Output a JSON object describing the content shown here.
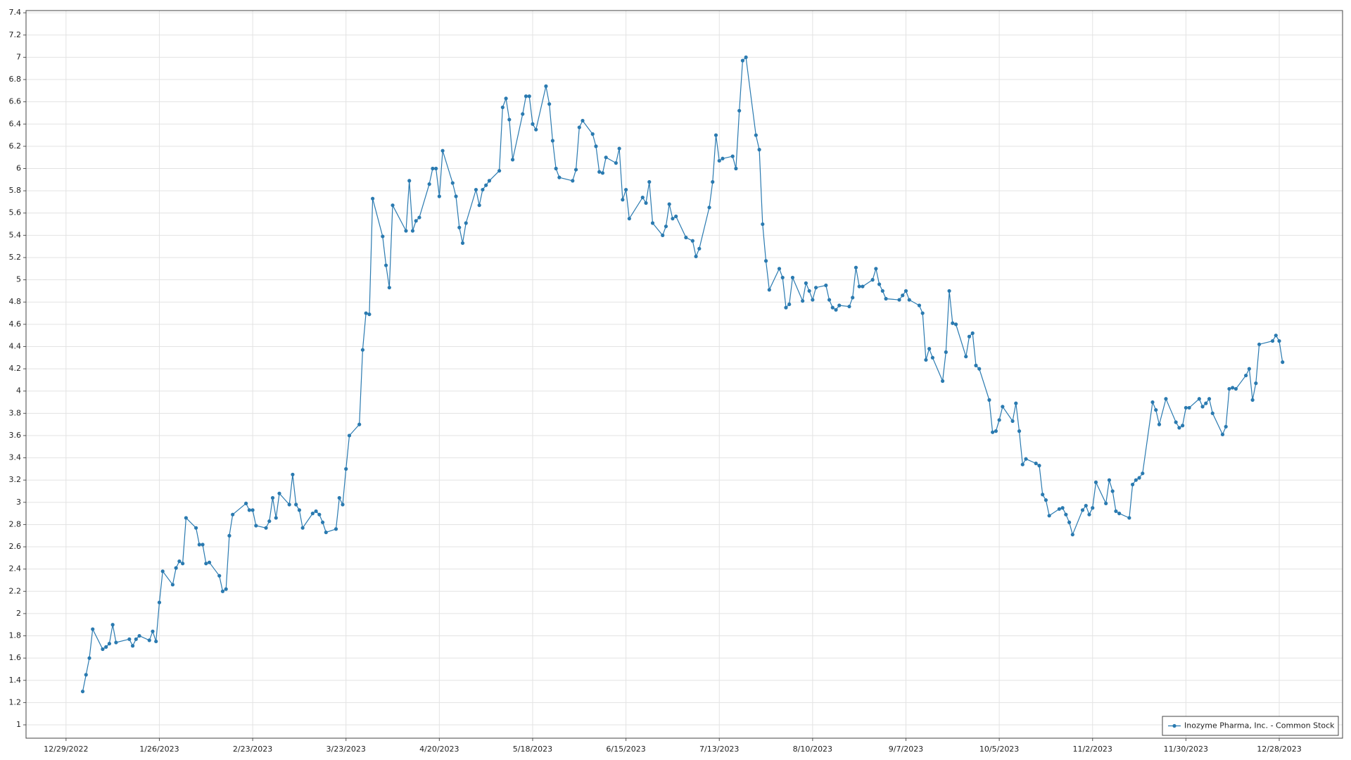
{
  "chart_data": {
    "type": "line",
    "grid": true,
    "legend": "lower right",
    "xlim": [
      "12/17/2022",
      "1/16/2024"
    ],
    "xticks": [
      "12/29/2022",
      "1/26/2023",
      "2/23/2023",
      "3/23/2023",
      "4/20/2023",
      "5/18/2023",
      "6/15/2023",
      "7/13/2023",
      "8/10/2023",
      "9/7/2023",
      "10/5/2023",
      "11/2/2023",
      "11/30/2023",
      "12/28/2023"
    ],
    "ylim": [
      0.88,
      7.42
    ],
    "yticks": [
      1,
      1.2,
      1.4,
      1.6,
      1.8,
      2,
      2.2,
      2.4,
      2.6,
      2.8,
      3,
      3.2,
      3.4,
      3.6,
      3.8,
      4,
      4.2,
      4.4,
      4.6,
      4.8,
      5,
      5.2,
      5.4,
      5.6,
      5.8,
      6,
      6.2,
      6.4,
      6.6,
      6.8,
      7,
      7.2,
      7.4
    ],
    "x": [
      "1/3/2023",
      "1/4/2023",
      "1/5/2023",
      "1/6/2023",
      "1/9/2023",
      "1/10/2023",
      "1/11/2023",
      "1/12/2023",
      "1/13/2023",
      "1/17/2023",
      "1/18/2023",
      "1/19/2023",
      "1/20/2023",
      "1/23/2023",
      "1/24/2023",
      "1/25/2023",
      "1/26/2023",
      "1/27/2023",
      "1/30/2023",
      "1/31/2023",
      "2/1/2023",
      "2/2/2023",
      "2/3/2023",
      "2/6/2023",
      "2/7/2023",
      "2/8/2023",
      "2/9/2023",
      "2/10/2023",
      "2/13/2023",
      "2/14/2023",
      "2/15/2023",
      "2/16/2023",
      "2/17/2023",
      "2/21/2023",
      "2/22/2023",
      "2/23/2023",
      "2/24/2023",
      "2/27/2023",
      "2/28/2023",
      "3/1/2023",
      "3/2/2023",
      "3/3/2023",
      "3/6/2023",
      "3/7/2023",
      "3/8/2023",
      "3/9/2023",
      "3/10/2023",
      "3/13/2023",
      "3/14/2023",
      "3/15/2023",
      "3/16/2023",
      "3/17/2023",
      "3/20/2023",
      "3/21/2023",
      "3/22/2023",
      "3/23/2023",
      "3/24/2023",
      "3/27/2023",
      "3/28/2023",
      "3/29/2023",
      "3/30/2023",
      "3/31/2023",
      "4/3/2023",
      "4/4/2023",
      "4/5/2023",
      "4/6/2023",
      "4/10/2023",
      "4/11/2023",
      "4/12/2023",
      "4/13/2023",
      "4/14/2023",
      "4/17/2023",
      "4/18/2023",
      "4/19/2023",
      "4/20/2023",
      "4/21/2023",
      "4/24/2023",
      "4/25/2023",
      "4/26/2023",
      "4/27/2023",
      "4/28/2023",
      "5/1/2023",
      "5/2/2023",
      "5/3/2023",
      "5/4/2023",
      "5/5/2023",
      "5/8/2023",
      "5/9/2023",
      "5/10/2023",
      "5/11/2023",
      "5/12/2023",
      "5/15/2023",
      "5/16/2023",
      "5/17/2023",
      "5/18/2023",
      "5/19/2023",
      "5/22/2023",
      "5/23/2023",
      "5/24/2023",
      "5/25/2023",
      "5/26/2023",
      "5/30/2023",
      "5/31/2023",
      "6/1/2023",
      "6/2/2023",
      "6/5/2023",
      "6/6/2023",
      "6/7/2023",
      "6/8/2023",
      "6/9/2023",
      "6/12/2023",
      "6/13/2023",
      "6/14/2023",
      "6/15/2023",
      "6/16/2023",
      "6/20/2023",
      "6/21/2023",
      "6/22/2023",
      "6/23/2023",
      "6/26/2023",
      "6/27/2023",
      "6/28/2023",
      "6/29/2023",
      "6/30/2023",
      "7/3/2023",
      "7/5/2023",
      "7/6/2023",
      "7/7/2023",
      "7/10/2023",
      "7/11/2023",
      "7/12/2023",
      "7/13/2023",
      "7/14/2023",
      "7/17/2023",
      "7/18/2023",
      "7/19/2023",
      "7/20/2023",
      "7/21/2023",
      "7/24/2023",
      "7/25/2023",
      "7/26/2023",
      "7/27/2023",
      "7/28/2023",
      "7/31/2023",
      "8/1/2023",
      "8/2/2023",
      "8/3/2023",
      "8/4/2023",
      "8/7/2023",
      "8/8/2023",
      "8/9/2023",
      "8/10/2023",
      "8/11/2023",
      "8/14/2023",
      "8/15/2023",
      "8/16/2023",
      "8/17/2023",
      "8/18/2023",
      "8/21/2023",
      "8/22/2023",
      "8/23/2023",
      "8/24/2023",
      "8/25/2023",
      "8/28/2023",
      "8/29/2023",
      "8/30/2023",
      "8/31/2023",
      "9/1/2023",
      "9/5/2023",
      "9/6/2023",
      "9/7/2023",
      "9/8/2023",
      "9/11/2023",
      "9/12/2023",
      "9/13/2023",
      "9/14/2023",
      "9/15/2023",
      "9/18/2023",
      "9/19/2023",
      "9/20/2023",
      "9/21/2023",
      "9/22/2023",
      "9/25/2023",
      "9/26/2023",
      "9/27/2023",
      "9/28/2023",
      "9/29/2023",
      "10/2/2023",
      "10/3/2023",
      "10/4/2023",
      "10/5/2023",
      "10/6/2023",
      "10/9/2023",
      "10/10/2023",
      "10/11/2023",
      "10/12/2023",
      "10/13/2023",
      "10/16/2023",
      "10/17/2023",
      "10/18/2023",
      "10/19/2023",
      "10/20/2023",
      "10/23/2023",
      "10/24/2023",
      "10/25/2023",
      "10/26/2023",
      "10/27/2023",
      "10/30/2023",
      "10/31/2023",
      "11/1/2023",
      "11/2/2023",
      "11/3/2023",
      "11/6/2023",
      "11/7/2023",
      "11/8/2023",
      "11/9/2023",
      "11/10/2023",
      "11/13/2023",
      "11/14/2023",
      "11/15/2023",
      "11/16/2023",
      "11/17/2023",
      "11/20/2023",
      "11/21/2023",
      "11/22/2023",
      "11/24/2023",
      "11/27/2023",
      "11/28/2023",
      "11/29/2023",
      "11/30/2023",
      "12/1/2023",
      "12/4/2023",
      "12/5/2023",
      "12/6/2023",
      "12/7/2023",
      "12/8/2023",
      "12/11/2023",
      "12/12/2023",
      "12/13/2023",
      "12/14/2023",
      "12/15/2023",
      "12/18/2023",
      "12/19/2023",
      "12/20/2023",
      "12/21/2023",
      "12/22/2023",
      "12/26/2023",
      "12/27/2023",
      "12/28/2023",
      "12/29/2023"
    ],
    "series": [
      {
        "name": "Inozyme Pharma, Inc. - Common Stock",
        "color": "#2a7ab0",
        "values": [
          1.3,
          1.45,
          1.6,
          1.86,
          1.68,
          1.7,
          1.73,
          1.9,
          1.74,
          1.77,
          1.71,
          1.77,
          1.8,
          1.76,
          1.84,
          1.75,
          2.1,
          2.38,
          2.26,
          2.41,
          2.47,
          2.45,
          2.86,
          2.77,
          2.62,
          2.62,
          2.45,
          2.46,
          2.34,
          2.2,
          2.22,
          2.7,
          2.89,
          2.99,
          2.93,
          2.93,
          2.79,
          2.77,
          2.83,
          3.04,
          2.86,
          3.08,
          2.98,
          3.25,
          2.98,
          2.93,
          2.77,
          2.9,
          2.92,
          2.89,
          2.82,
          2.73,
          2.76,
          3.04,
          2.98,
          3.3,
          3.6,
          3.7,
          4.37,
          4.7,
          4.69,
          5.73,
          5.39,
          5.13,
          4.93,
          5.67,
          5.44,
          5.89,
          5.44,
          5.53,
          5.56,
          5.86,
          6.0,
          6.0,
          5.75,
          6.16,
          5.87,
          5.75,
          5.47,
          5.33,
          5.51,
          5.81,
          5.67,
          5.81,
          5.85,
          5.89,
          5.98,
          6.55,
          6.63,
          6.44,
          6.08,
          6.49,
          6.65,
          6.65,
          6.4,
          6.35,
          6.74,
          6.58,
          6.25,
          6.0,
          5.92,
          5.89,
          5.99,
          6.37,
          6.43,
          6.31,
          6.2,
          5.97,
          5.96,
          6.1,
          6.05,
          6.18,
          5.72,
          5.81,
          5.55,
          5.74,
          5.69,
          5.88,
          5.51,
          5.4,
          5.48,
          5.68,
          5.55,
          5.57,
          5.38,
          5.35,
          5.21,
          5.28,
          5.65,
          5.88,
          6.3,
          6.07,
          6.09,
          6.11,
          6.0,
          6.52,
          6.97,
          7.0,
          6.3,
          6.17,
          5.5,
          5.17,
          4.91,
          5.1,
          5.02,
          4.75,
          4.78,
          5.02,
          4.81,
          4.97,
          4.9,
          4.82,
          4.93,
          4.95,
          4.82,
          4.75,
          4.73,
          4.77,
          4.76,
          4.84,
          5.11,
          4.94,
          4.94,
          5.0,
          5.1,
          4.96,
          4.9,
          4.83,
          4.82,
          4.86,
          4.9,
          4.82,
          4.77,
          4.7,
          4.28,
          4.38,
          4.3,
          4.09,
          4.35,
          4.9,
          4.61,
          4.6,
          4.31,
          4.49,
          4.52,
          4.23,
          4.2,
          3.92,
          3.63,
          3.64,
          3.74,
          3.86,
          3.73,
          3.89,
          3.64,
          3.34,
          3.39,
          3.35,
          3.33,
          3.07,
          3.02,
          2.88,
          2.94,
          2.95,
          2.89,
          2.82,
          2.71,
          2.93,
          2.97,
          2.89,
          2.95,
          3.18,
          2.99,
          3.2,
          3.1,
          2.92,
          2.9,
          2.86,
          3.16,
          3.2,
          3.22,
          3.26,
          3.9,
          3.83,
          3.7,
          3.93,
          3.72,
          3.67,
          3.69,
          3.85,
          3.85,
          3.93,
          3.86,
          3.89,
          3.93,
          3.8,
          3.61,
          3.68,
          4.02,
          4.03,
          4.02,
          4.14,
          4.2,
          3.92,
          4.07,
          4.42,
          4.45,
          4.5,
          4.45,
          4.26
        ]
      }
    ]
  }
}
